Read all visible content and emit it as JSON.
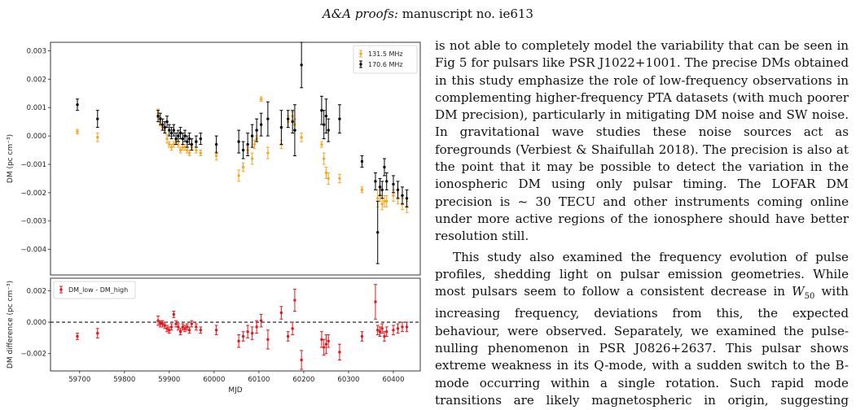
{
  "header": {
    "journal": "A&A proofs:",
    "manuscript": " manuscript no. ie613"
  },
  "chart_data": [
    {
      "type": "scatter",
      "ylabel": "DM (pc cm⁻³)",
      "ylim": [
        -0.0049,
        0.0033
      ],
      "xlim": [
        59635,
        60460
      ],
      "yticks": [
        0.003,
        0.002,
        0.001,
        0.0,
        -0.001,
        -0.002,
        -0.003,
        -0.004
      ],
      "ytick_labels": [
        "0.003",
        "0.002",
        "0.001",
        "0.000",
        "−0.001",
        "−0.002",
        "−0.003",
        "−0.004"
      ],
      "legend_position": "top-right",
      "series": [
        {
          "name": "131.5 MHz",
          "color": "#f5a623",
          "x": [
            59695,
            59740,
            59875,
            59880,
            59885,
            59890,
            59895,
            59900,
            59905,
            59910,
            59915,
            59920,
            59925,
            59930,
            59935,
            59940,
            59945,
            59950,
            59960,
            59970,
            60005,
            60055,
            60065,
            60075,
            60085,
            60090,
            60095,
            60105,
            60120,
            60150,
            60165,
            60175,
            60180,
            60195,
            60240,
            60245,
            60250,
            60255,
            60280,
            60330,
            60365,
            60370,
            60375,
            60380,
            60385,
            60400,
            60410,
            60420,
            60430
          ],
          "y": [
            0.00015,
            -5e-05,
            0.0008,
            0.0005,
            0.0003,
            0.0002,
            -0.0001,
            -0.0003,
            -0.0004,
            -0.0003,
            -0.0002,
            -0.0003,
            -0.0005,
            -0.0004,
            -0.0004,
            -0.0005,
            -0.0006,
            -0.0004,
            -0.0005,
            -0.0006,
            -0.0007,
            -0.0014,
            -0.0011,
            -0.0005,
            -0.0008,
            -0.0003,
            -0.0001,
            0.0013,
            -0.0006,
            -0.0003,
            0.0005,
            0.0007,
            0.0004,
            -5e-05,
            -0.0003,
            -0.0008,
            -0.0013,
            -0.0015,
            -0.0015,
            -0.0019,
            -0.0022,
            -0.0021,
            -0.0024,
            -0.0023,
            -0.0023,
            -0.0021,
            -0.0022,
            -0.0024,
            -0.0025
          ],
          "err": [
            8e-05,
            0.00015,
            0.00015,
            0.00015,
            0.0001,
            0.0001,
            0.00015,
            0.0001,
            0.0001,
            0.0001,
            0.0001,
            0.0001,
            0.0001,
            0.0001,
            0.0001,
            0.0001,
            0.0001,
            0.0001,
            0.0001,
            0.0001,
            0.00015,
            0.0002,
            0.00015,
            0.0001,
            0.0002,
            0.00015,
            0.0001,
            8e-05,
            0.0002,
            0.00015,
            0.0002,
            0.00015,
            0.0002,
            0.00015,
            0.0001,
            0.0002,
            0.0002,
            0.0002,
            0.00015,
            0.0001,
            0.0003,
            0.0002,
            0.0002,
            0.0002,
            0.0002,
            0.0002,
            0.0002,
            0.0002,
            0.0002
          ]
        },
        {
          "name": "170.6 MHz",
          "color": "#000000",
          "x": [
            59695,
            59740,
            59875,
            59880,
            59885,
            59890,
            59895,
            59900,
            59905,
            59910,
            59915,
            59920,
            59925,
            59930,
            59935,
            59940,
            59945,
            59950,
            59960,
            59970,
            60005,
            60055,
            60065,
            60075,
            60085,
            60095,
            60105,
            60120,
            60150,
            60165,
            60175,
            60180,
            60195,
            60240,
            60245,
            60250,
            60255,
            60280,
            60330,
            60360,
            60365,
            60370,
            60375,
            60380,
            60385,
            60400,
            60410,
            60420,
            60430
          ],
          "y": [
            0.0011,
            0.0006,
            0.0007,
            0.0006,
            0.0004,
            0.0003,
            0.0005,
            0.0002,
            0.0001,
            0.0002,
            -0.0001,
            0.0,
            0.0001,
            -0.0001,
            0.0,
            -0.0002,
            -0.0001,
            -0.0003,
            -0.0002,
            -0.0001,
            -0.0003,
            -0.0002,
            -0.0005,
            -0.0003,
            0.0,
            0.0002,
            0.0004,
            0.0006,
            0.0003,
            0.0006,
            0.0005,
            0.0002,
            0.0025,
            0.0009,
            0.0004,
            0.0007,
            0.0002,
            0.0006,
            -0.0009,
            -0.0016,
            -0.0034,
            -0.0018,
            -0.0019,
            -0.0011,
            -0.0016,
            -0.0017,
            -0.0019,
            -0.0021,
            -0.0022
          ],
          "err": [
            0.0002,
            0.0003,
            0.0002,
            0.0002,
            0.0002,
            0.0002,
            0.0002,
            0.0002,
            0.0002,
            0.0002,
            0.0002,
            0.0002,
            0.0002,
            0.0002,
            0.0002,
            0.0002,
            0.0002,
            0.0002,
            0.0002,
            0.0002,
            0.0003,
            0.0004,
            0.0003,
            0.0004,
            0.0004,
            0.0004,
            0.0004,
            0.0006,
            0.0006,
            0.0003,
            0.0004,
            0.0009,
            0.0008,
            0.0005,
            0.0005,
            0.0006,
            0.0004,
            0.0005,
            0.0002,
            0.0003,
            0.0011,
            0.0003,
            0.0003,
            0.0003,
            0.0003,
            0.0003,
            0.0003,
            0.0003,
            0.0003
          ]
        }
      ]
    },
    {
      "type": "scatter",
      "ylabel": "DM difference (pc cm⁻³)",
      "xlabel": "MJD",
      "ylim": [
        -0.0031,
        0.0028
      ],
      "xlim": [
        59635,
        60460
      ],
      "yticks": [
        0.002,
        0.0,
        -0.002
      ],
      "ytick_labels": [
        "0.002",
        "0.000",
        "−0.002"
      ],
      "xticks": [
        59700,
        59800,
        59900,
        60000,
        60100,
        60200,
        60300,
        60400
      ],
      "xtick_labels": [
        "59700",
        "59800",
        "59900",
        "60000",
        "60100",
        "60200",
        "60300",
        "60400"
      ],
      "reference_line": 0,
      "legend_position": "top-left",
      "series": [
        {
          "name": "DM_low - DM_high",
          "color": "#e8151b",
          "x": [
            59695,
            59740,
            59875,
            59880,
            59885,
            59890,
            59895,
            59900,
            59905,
            59910,
            59915,
            59920,
            59925,
            59930,
            59935,
            59940,
            59945,
            59950,
            59960,
            59970,
            60005,
            60055,
            60065,
            60075,
            60085,
            60095,
            60105,
            60120,
            60150,
            60165,
            60175,
            60180,
            60195,
            60240,
            60245,
            60250,
            60255,
            60280,
            60330,
            60360,
            60365,
            60370,
            60375,
            60380,
            60385,
            60400,
            60410,
            60420,
            60430
          ],
          "y": [
            -0.0009,
            -0.0007,
            0.0001,
            -0.0001,
            -0.0001,
            -0.0002,
            -0.0004,
            -0.0005,
            -0.0003,
            0.0005,
            -0.0001,
            -0.0003,
            -0.0006,
            -0.0003,
            -0.0004,
            -0.0003,
            -0.0005,
            -0.0001,
            -0.0003,
            -0.0005,
            -0.0005,
            -0.0012,
            -0.0009,
            -0.0006,
            -0.0007,
            -0.0003,
            0.0001,
            -0.0011,
            0.0006,
            -0.0009,
            -0.0004,
            0.0014,
            -0.0024,
            -0.0011,
            -0.0016,
            -0.0014,
            -0.0012,
            -0.0019,
            -0.0009,
            0.0013,
            -0.0005,
            -0.0006,
            -0.0004,
            -0.0009,
            -0.0006,
            -0.0005,
            -0.0004,
            -0.0003,
            -0.0003
          ],
          "err": [
            0.0002,
            0.0003,
            0.0003,
            0.0002,
            0.0002,
            0.0002,
            0.0002,
            0.0002,
            0.0002,
            0.0002,
            0.0002,
            0.0002,
            0.0002,
            0.0002,
            0.0002,
            0.0002,
            0.0002,
            0.0002,
            0.0002,
            0.0002,
            0.0003,
            0.0004,
            0.0003,
            0.0004,
            0.0004,
            0.0004,
            0.0004,
            0.0006,
            0.0004,
            0.0003,
            0.0004,
            0.0007,
            0.0006,
            0.0005,
            0.0005,
            0.0006,
            0.0004,
            0.0005,
            0.0003,
            0.0011,
            0.0003,
            0.0003,
            0.0003,
            0.0003,
            0.0003,
            0.0003,
            0.0003,
            0.0003,
            0.0003
          ]
        }
      ]
    }
  ],
  "body": {
    "p1": "is not able to completely model the variability that can be seen in Fig 5 for pulsars like PSR J1022+1001. The precise DMs obtained in this study emphasize the role of low-frequency observations in complementing higher-frequency PTA datasets (with much poorer DM precision), particularly in mitigating DM noise and SW noise. In gravitational wave studies these noise sources act as foregrounds (Verbiest & Shaifullah 2018). The precision is also at the point that it may be possible to detect the variation in the ionospheric DM using only pulsar timing. The LOFAR DM precision is ~ 30 TECU and other instruments coming online under more active regions of the ionosphere should have better resolution still.",
    "p2_a": "This study also examined the frequency evolution of pulse profiles, shedding light on pulsar emission geometries. While most pulsars seem to follow a consistent decrease in ",
    "p2_w": "W",
    "p2_sub": "50",
    "p2_b": " with increasing frequency, deviations from this, the expected behaviour, were observed. Separately, we examined the pulse-nulling phenomenon in PSR J0826+2637. This pulsar shows extreme weakness in its Q-mode, with a sudden switch to the B-mode occurring within a single rotation. Such rapid mode transitions are likely magnetospheric in origin, suggesting quantized sta-"
  }
}
